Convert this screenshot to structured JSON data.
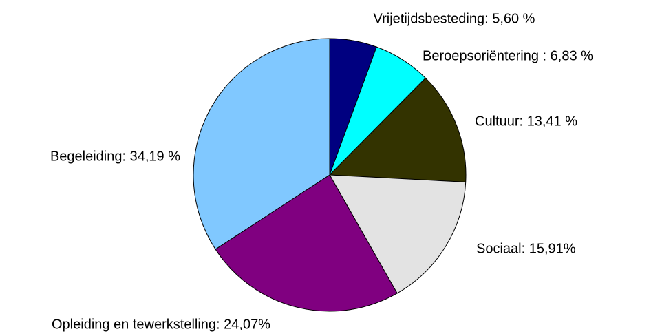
{
  "chart_data": {
    "type": "pie",
    "values": [
      5.6,
      6.83,
      13.41,
      15.91,
      24.07,
      34.19
    ],
    "value_labels": [
      "Vrijetijdsbesteding: 5,60 %",
      "Beroepsoriëntering : 6,83 %",
      "Cultuur: 13,41 %",
      "Sociaal: 15,91%",
      "Opleiding en tewerkstelling: 24,07%",
      "Begeleiding: 34,19 %"
    ],
    "colors": [
      "#000080",
      "#00ffff",
      "#333300",
      "#e3e3e3",
      "#800080",
      "#80c8ff"
    ]
  }
}
